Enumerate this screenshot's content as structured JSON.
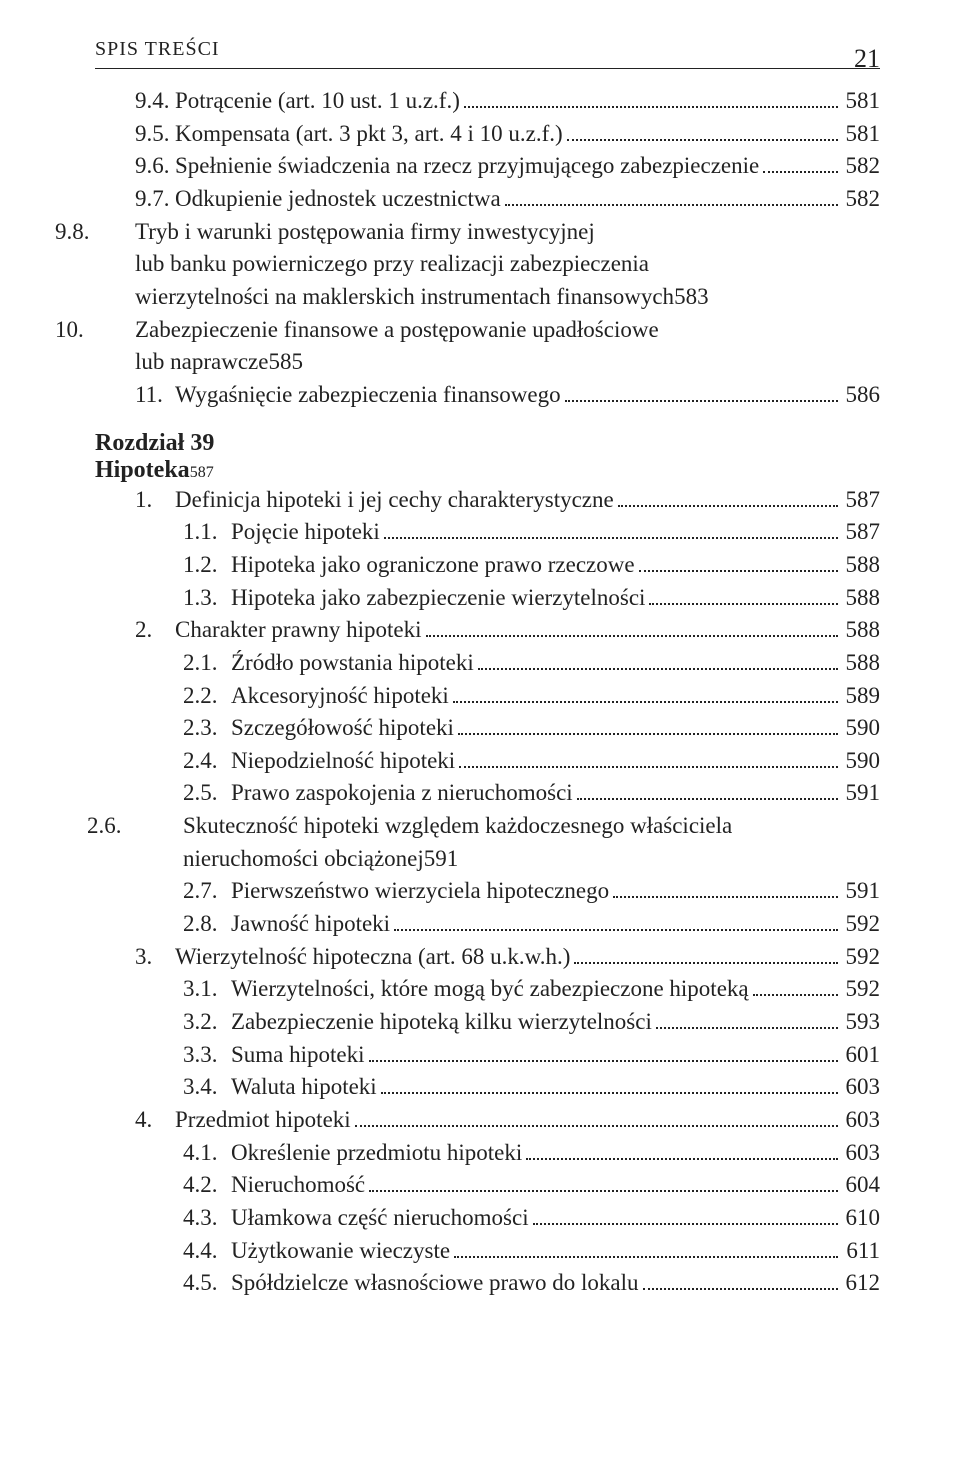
{
  "header": {
    "running_title": "SPIS TREŚCI",
    "page_number": "21"
  },
  "chapter_label": "Rozdział 39",
  "chapter_title": "Hipoteka",
  "chapter_page": "587",
  "entries_before": [
    {
      "level": 0,
      "num": "9.4.",
      "text": "Potrącenie (art. 10 ust. 1 u.z.f.)",
      "page": "581"
    },
    {
      "level": 0,
      "num": "9.5.",
      "text": "Kompensata (art. 3 pkt 3, art. 4 i 10 u.z.f.)",
      "page": "581"
    },
    {
      "level": 0,
      "num": "9.6.",
      "text": "Spełnienie świadczenia na rzecz przyjmującego zabezpieczenie",
      "page": "582"
    },
    {
      "level": 0,
      "num": "9.7.",
      "text": "Odkupienie jednostek uczestnictwa",
      "page": "582"
    },
    {
      "level": 0,
      "num": "9.8.",
      "text_lines": [
        "Tryb i warunki postępowania firmy inwestycyjnej",
        "lub banku powierniczego przy realizacji zabezpieczenia",
        "wierzytelności na maklerskich instrumentach finansowych"
      ],
      "page": "583"
    },
    {
      "level": 0,
      "num": "10.",
      "text_lines": [
        "Zabezpieczenie finansowe a postępowanie upadłościowe",
        "lub naprawcze"
      ],
      "page": "585"
    },
    {
      "level": 0,
      "num": "11.",
      "text": "Wygaśnięcie zabezpieczenia finansowego",
      "page": "586"
    }
  ],
  "entries_after": [
    {
      "level": 0,
      "num": "1.",
      "text": "Definicja hipoteki i jej cechy charakterystyczne",
      "page": "587"
    },
    {
      "level": 1,
      "num": "1.1.",
      "text": "Pojęcie hipoteki",
      "page": "587"
    },
    {
      "level": 1,
      "num": "1.2.",
      "text": "Hipoteka jako ograniczone prawo rzeczowe",
      "page": "588"
    },
    {
      "level": 1,
      "num": "1.3.",
      "text": "Hipoteka jako zabezpieczenie wierzytelności",
      "page": "588"
    },
    {
      "level": 0,
      "num": "2.",
      "text": "Charakter prawny hipoteki",
      "page": "588"
    },
    {
      "level": 1,
      "num": "2.1.",
      "text": "Źródło powstania hipoteki",
      "page": "588"
    },
    {
      "level": 1,
      "num": "2.2.",
      "text": "Akcesoryjność hipoteki",
      "page": "589"
    },
    {
      "level": 1,
      "num": "2.3.",
      "text": "Szczegółowość hipoteki",
      "page": "590"
    },
    {
      "level": 1,
      "num": "2.4.",
      "text": "Niepodzielność hipoteki",
      "page": "590"
    },
    {
      "level": 1,
      "num": "2.5.",
      "text": "Prawo zaspokojenia z nieruchomości",
      "page": "591"
    },
    {
      "level": 1,
      "num": "2.6.",
      "text_lines": [
        "Skuteczność hipoteki względem każdoczesnego właściciela",
        "nieruchomości obciążonej"
      ],
      "page": "591"
    },
    {
      "level": 1,
      "num": "2.7.",
      "text": "Pierwszeństwo wierzyciela hipotecznego",
      "page": "591"
    },
    {
      "level": 1,
      "num": "2.8.",
      "text": "Jawność hipoteki",
      "page": "592"
    },
    {
      "level": 0,
      "num": "3.",
      "text": "Wierzytelność hipoteczna (art. 68 u.k.w.h.)",
      "page": "592"
    },
    {
      "level": 1,
      "num": "3.1.",
      "text": "Wierzytelności, które mogą być zabezpieczone hipoteką",
      "page": "592"
    },
    {
      "level": 1,
      "num": "3.2.",
      "text": "Zabezpieczenie hipoteką kilku wierzytelności",
      "page": "593"
    },
    {
      "level": 1,
      "num": "3.3.",
      "text": "Suma hipoteki",
      "page": "601"
    },
    {
      "level": 1,
      "num": "3.4.",
      "text": "Waluta hipoteki",
      "page": "603"
    },
    {
      "level": 0,
      "num": "4.",
      "text": "Przedmiot hipoteki",
      "page": "603"
    },
    {
      "level": 1,
      "num": "4.1.",
      "text": "Określenie przedmiotu hipoteki",
      "page": "603"
    },
    {
      "level": 1,
      "num": "4.2.",
      "text": "Nieruchomość",
      "page": "604"
    },
    {
      "level": 1,
      "num": "4.3.",
      "text": "Ułamkowa część nieruchomości",
      "page": "610"
    },
    {
      "level": 1,
      "num": "4.4.",
      "text": "Użytkowanie wieczyste",
      "page": "611"
    },
    {
      "level": 1,
      "num": "4.5.",
      "text": "Spółdzielcze własnościowe prawo do lokalu",
      "page": "612"
    }
  ]
}
